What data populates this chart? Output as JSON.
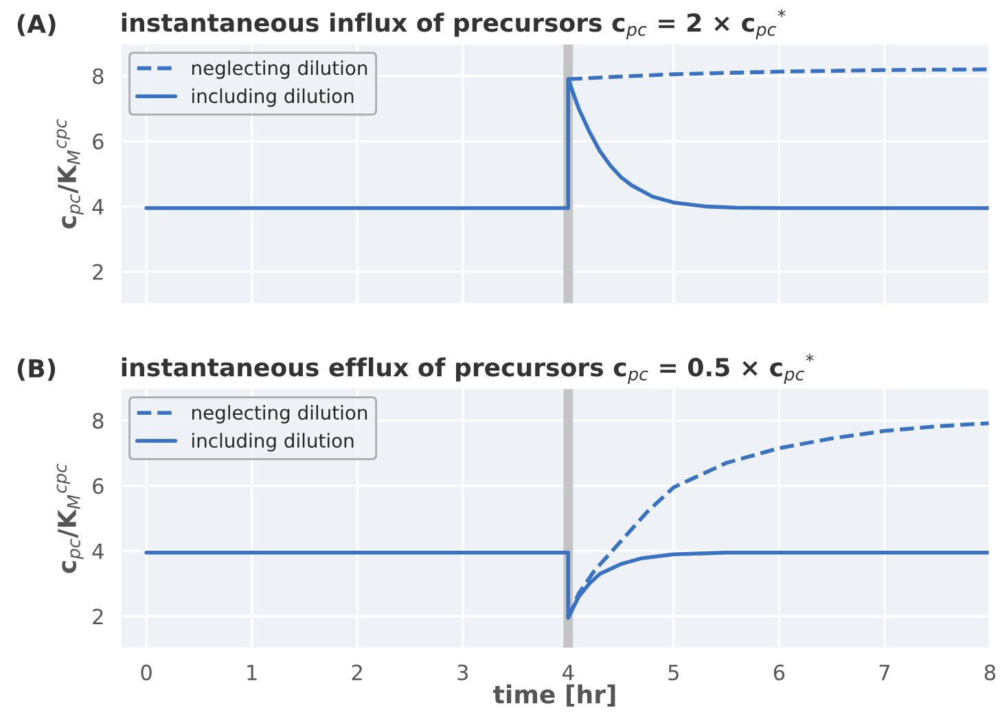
{
  "chart_data": [
    {
      "type": "line",
      "title": "instantaneous influx of precursors c$_{pc}$ = 2 × c$_{pc}$$^{*}$",
      "ylabel": "c$_{pc}$/K$_{M}$$^{cpc}$",
      "annotations": [
        "(A)"
      ],
      "x": [
        0,
        4,
        4,
        4.1,
        4.2,
        4.3,
        4.4,
        4.5,
        4.6,
        4.8,
        5.0,
        5.3,
        5.6,
        6,
        8
      ],
      "series": [
        {
          "name": "neglecting dilution",
          "color": "#3a72c2",
          "line_style": "dashed",
          "x": [
            4,
            4.5,
            5,
            6,
            7,
            8
          ],
          "values": [
            7.9,
            7.98,
            8.05,
            8.13,
            8.18,
            8.2
          ]
        },
        {
          "name": "including dilution",
          "color": "#3a72c2",
          "line_style": "solid",
          "values": [
            3.95,
            3.95,
            7.9,
            7.0,
            6.3,
            5.7,
            5.25,
            4.9,
            4.65,
            4.3,
            4.12,
            4.0,
            3.96,
            3.95,
            3.95
          ]
        }
      ],
      "ref_lines": [
        {
          "axis": "x",
          "value": 4,
          "color": "#c4c4c4"
        }
      ],
      "xlim": [
        -0.25,
        8
      ],
      "xticks": [
        0,
        1,
        2,
        3,
        4,
        5,
        6,
        7,
        8
      ],
      "ylim": [
        1,
        9
      ],
      "yticks": [
        2,
        4,
        6,
        8
      ],
      "tick_labels": "y",
      "grid": true,
      "legend": "top left"
    },
    {
      "type": "line",
      "title": "instantaneous efflux of precursors c$_{pc}$ = 0.5 × c$_{pc}$$^{*}$",
      "ylabel": "c$_{pc}$/K$_{M}$$^{cpc}$",
      "xlabel": "time [hr]",
      "annotations": [
        "(B)"
      ],
      "x": [
        0,
        4,
        4,
        4.1,
        4.2,
        4.3,
        4.5,
        4.7,
        5,
        5.5,
        8
      ],
      "series": [
        {
          "name": "neglecting dilution",
          "color": "#3a72c2",
          "line_style": "dashed",
          "x": [
            4,
            4.1,
            4.25,
            4.5,
            4.75,
            5,
            5.5,
            6,
            6.5,
            7,
            7.5,
            8
          ],
          "values": [
            1.95,
            2.7,
            3.4,
            4.3,
            5.2,
            5.95,
            6.7,
            7.15,
            7.45,
            7.68,
            7.82,
            7.92
          ]
        },
        {
          "name": "including dilution",
          "color": "#3a72c2",
          "line_style": "solid",
          "values": [
            3.95,
            3.95,
            1.95,
            2.6,
            3.0,
            3.3,
            3.6,
            3.78,
            3.9,
            3.95,
            3.95
          ]
        }
      ],
      "ref_lines": [
        {
          "axis": "x",
          "value": 4,
          "color": "#c4c4c4"
        }
      ],
      "xlim": [
        -0.25,
        8
      ],
      "xticks": [
        0,
        1,
        2,
        3,
        4,
        5,
        6,
        7,
        8
      ],
      "ylim": [
        1,
        9
      ],
      "yticks": [
        2,
        4,
        6,
        8
      ],
      "grid": true,
      "legend": "top left"
    }
  ]
}
